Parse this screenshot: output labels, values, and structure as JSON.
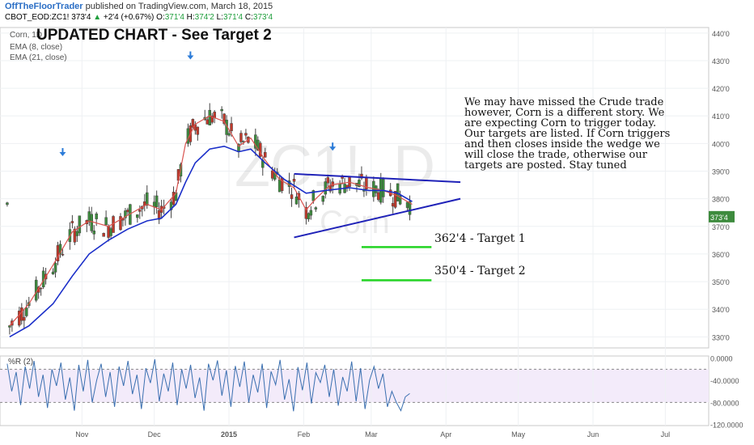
{
  "header": {
    "author": "OffTheFloorTrader",
    "published": "published on TradingView.com, March 18, 2015",
    "symbol": "CBOT_EOD:ZC1!",
    "last": "373'4",
    "change": "+2'4 (+0.67%)",
    "open_label": "O:",
    "open": "371'4",
    "high_label": "H:",
    "high": "374'2",
    "low_label": "L:",
    "low": "371'4",
    "close_label": "C:",
    "close": "373'4"
  },
  "legend": {
    "name": "Corn, 1D",
    "ema8": "EMA (8, close)",
    "ema21": "EMA (21, close)"
  },
  "watermark": {
    "symbol": "ZC1!, D",
    "name": "Corn"
  },
  "annotations": {
    "title": "UPDATED CHART - See Target 2",
    "note": "We may have missed the Crude trade however, Corn is a different story.  We are expecting Corn to trigger today.  Our targets are listed.  If Corn triggers and then closes inside the wedge we will close the trade, otherwise our targets are posted.  Stay tuned",
    "target1": "362'4 - Target 1",
    "target2": "350'4 - Target 2"
  },
  "chart_data": [
    {
      "type": "candlestick",
      "title": "Corn, 1D",
      "y_axis_ticks": [
        "330'0",
        "340'0",
        "350'0",
        "360'0",
        "370'0",
        "380'0",
        "390'0",
        "400'0",
        "410'0",
        "420'0",
        "430'0",
        "440'0"
      ],
      "ylim": [
        326,
        442
      ],
      "x_axis_ticks": [
        "Nov",
        "Dec",
        "2015",
        "Feb",
        "Mar",
        "Apr",
        "May",
        "Jun",
        "Jul"
      ],
      "price_tag": "373'4",
      "series": [
        {
          "name": "EMA (8, close)",
          "color": "#d9534f",
          "points": [
            [
              "2014-10-02",
              334
            ],
            [
              "2014-10-10",
              342
            ],
            [
              "2014-10-20",
              356
            ],
            [
              "2014-10-28",
              368
            ],
            [
              "2014-11-04",
              372
            ],
            [
              "2014-11-12",
              370
            ],
            [
              "2014-11-20",
              374
            ],
            [
              "2014-11-28",
              378
            ],
            [
              "2014-12-04",
              376
            ],
            [
              "2014-12-10",
              382
            ],
            [
              "2014-12-14",
              400
            ],
            [
              "2014-12-18",
              407
            ],
            [
              "2014-12-24",
              410
            ],
            [
              "2014-12-30",
              408
            ],
            [
              "2015-01-05",
              399
            ],
            [
              "2015-01-10",
              402
            ],
            [
              "2015-01-16",
              394
            ],
            [
              "2015-01-22",
              387
            ],
            [
              "2015-01-28",
              384
            ],
            [
              "2015-02-02",
              376
            ],
            [
              "2015-02-06",
              380
            ],
            [
              "2015-02-12",
              385
            ],
            [
              "2015-02-20",
              386
            ],
            [
              "2015-02-28",
              384
            ],
            [
              "2015-03-06",
              383
            ],
            [
              "2015-03-12",
              381
            ],
            [
              "2015-03-18",
              378
            ]
          ]
        },
        {
          "name": "EMA (21, close)",
          "color": "#1a2ec9",
          "points": [
            [
              "2014-10-02",
              330
            ],
            [
              "2014-10-10",
              334
            ],
            [
              "2014-10-20",
              342
            ],
            [
              "2014-10-28",
              352
            ],
            [
              "2014-11-04",
              360
            ],
            [
              "2014-11-12",
              365
            ],
            [
              "2014-11-20",
              369
            ],
            [
              "2014-11-28",
              372
            ],
            [
              "2014-12-04",
              373
            ],
            [
              "2014-12-10",
              378
            ],
            [
              "2014-12-14",
              386
            ],
            [
              "2014-12-18",
              393
            ],
            [
              "2014-12-24",
              398
            ],
            [
              "2014-12-30",
              399
            ],
            [
              "2015-01-05",
              397
            ],
            [
              "2015-01-10",
              398
            ],
            [
              "2015-01-16",
              393
            ],
            [
              "2015-01-24",
              387
            ],
            [
              "2015-02-02",
              382
            ],
            [
              "2015-02-10",
              383
            ],
            [
              "2015-02-20",
              384
            ],
            [
              "2015-02-28",
              383
            ],
            [
              "2015-03-06",
              383
            ],
            [
              "2015-03-12",
              382
            ],
            [
              "2015-03-18",
              379
            ]
          ]
        }
      ],
      "trendlines": [
        {
          "label": "wedge-upper",
          "from": [
            "2015-01-28",
            389
          ],
          "to": [
            "2015-04-07",
            386
          ]
        },
        {
          "label": "wedge-lower",
          "from": [
            "2015-01-28",
            366
          ],
          "to": [
            "2015-04-07",
            380
          ]
        },
        {
          "label": "target-1",
          "from": [
            "2015-02-25",
            362.5
          ],
          "to": [
            "2015-03-26",
            362.5
          ]
        },
        {
          "label": "target-2",
          "from": [
            "2015-02-25",
            350.5
          ],
          "to": [
            "2015-03-26",
            350.5
          ]
        }
      ],
      "markers": [
        {
          "label": "down-arrow",
          "date": "2014-10-24",
          "price": 396
        },
        {
          "label": "down-arrow",
          "date": "2014-12-16",
          "price": 431
        },
        {
          "label": "down-arrow",
          "date": "2015-02-13",
          "price": 398
        }
      ]
    },
    {
      "type": "line",
      "title": "%R (2)",
      "y_axis_ticks": [
        "0.0000",
        "-40.0000",
        "-80.0000",
        "-120.0000"
      ],
      "ylim": [
        -122,
        4
      ],
      "bands": [
        -20,
        -80
      ],
      "series": [
        {
          "name": "%R (2)",
          "color": "#3a6fb0",
          "values": [
            -10,
            -60,
            -25,
            -85,
            -15,
            -55,
            -5,
            -70,
            -30,
            -90,
            -20,
            -50,
            -8,
            -75,
            -35,
            -95,
            -12,
            -60,
            -3,
            -80,
            -40,
            -10,
            -70,
            -25,
            -88,
            -15,
            -50,
            -5,
            -65,
            -30,
            -92,
            -18,
            -45,
            -2,
            -78,
            -28,
            -60,
            -8,
            -85,
            -20,
            -55,
            -12,
            -72,
            -35,
            -95,
            -10,
            -40,
            -4,
            -68,
            -22,
            -88,
            -14,
            -52,
            -6,
            -80,
            -30,
            -62,
            -10,
            -90,
            -24,
            -48,
            -3,
            -75,
            -38,
            -96,
            -16,
            -58,
            -8,
            -82,
            -26,
            -44,
            -12,
            -70,
            -20,
            -86,
            -34,
            -60,
            -6,
            -78,
            -18,
            -92,
            -40,
            -15,
            -55,
            -28,
            -88,
            -60,
            -80,
            -95,
            -70,
            -64
          ]
        }
      ]
    }
  ]
}
